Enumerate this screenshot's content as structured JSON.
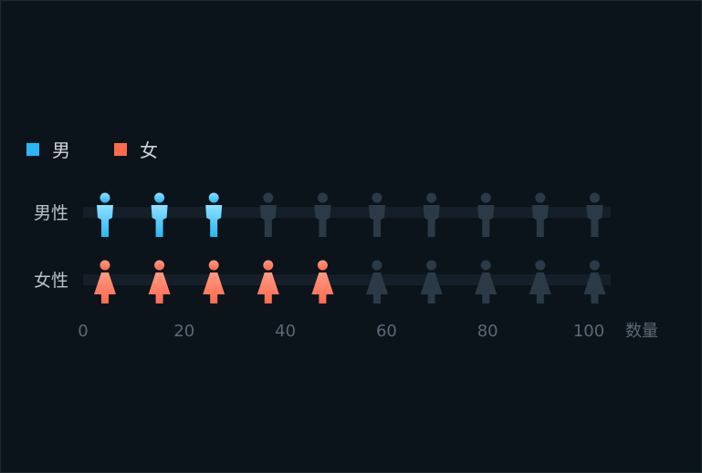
{
  "chart_data": {
    "type": "pictorial-bar",
    "categories": [
      "男性",
      "女性"
    ],
    "series": [
      {
        "name": "男",
        "value": 30,
        "color": "#2ab7f5",
        "icon": "male-person-icon"
      },
      {
        "name": "女",
        "value": 50,
        "color": "#ff6a4d",
        "icon": "female-person-icon"
      }
    ],
    "symbol_step": 10,
    "inactive_color": "#2b3a46",
    "track_color": "#141f29",
    "xlabel": "数量",
    "xlim": [
      0,
      105
    ],
    "xticks": [
      0,
      20,
      40,
      60,
      80,
      100
    ],
    "legend_position": "top-left",
    "grid": false
  }
}
